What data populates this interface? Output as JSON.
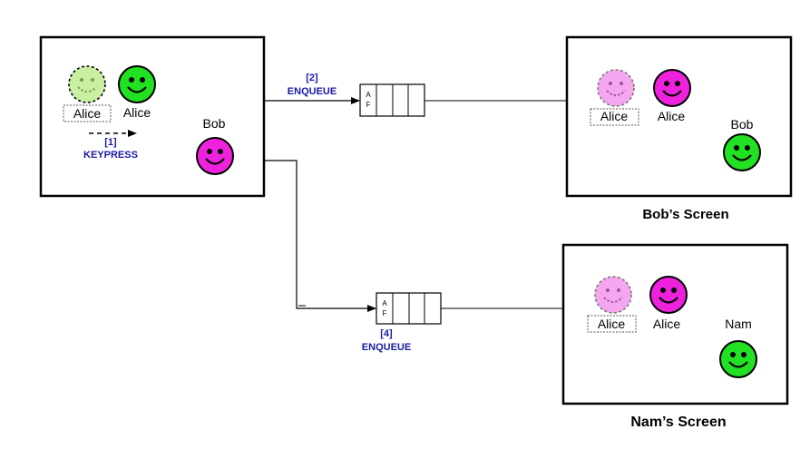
{
  "diagram": {
    "colors": {
      "alice_green": "#22e022",
      "ghost_green": "#c8f0a0",
      "bob_magenta": "#ee22dd",
      "ghost_pink": "#f5a6ee",
      "annotation_blue": "#1a1aa6",
      "line": "#000000"
    },
    "origin_screen": {
      "ghost_label": "Alice",
      "alice_label": "Alice",
      "bob_label": "Bob",
      "step1_number": "[1]",
      "step1_text": "KEYPRESS"
    },
    "queue_top": {
      "step_number": "[2]",
      "step_text": "ENQUEUE",
      "first_cell_line1": "A",
      "first_cell_line2": "F"
    },
    "queue_bottom": {
      "step_number": "[4]",
      "step_text": "ENQUEUE",
      "first_cell_line1": "A",
      "first_cell_line2": "F"
    },
    "bob_screen": {
      "caption": "Bob’s Screen",
      "ghost_label": "Alice",
      "alice_label": "Alice",
      "owner_label": "Bob"
    },
    "nam_screen": {
      "caption": "Nam’s Screen",
      "ghost_label": "Alice",
      "alice_label": "Alice",
      "owner_label": "Nam"
    }
  }
}
